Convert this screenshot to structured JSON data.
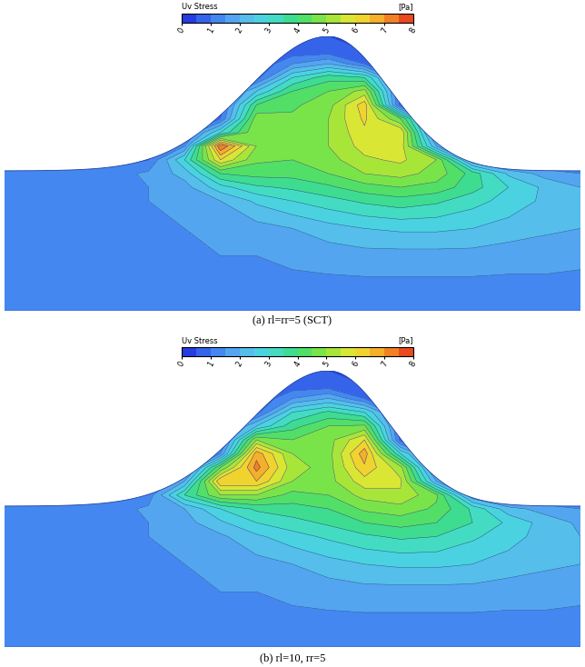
{
  "chart_data": [
    {
      "type": "contour",
      "caption": "(a) rl=rr=5 (SCT)",
      "colorbar_title": "Uv Stress",
      "colorbar_unit": "[Pa]",
      "colorbar_range": [
        0,
        8
      ],
      "colorbar_ticks": [
        0,
        1,
        2,
        3,
        4,
        5,
        6,
        7,
        8
      ],
      "tick_labels": false,
      "x": [
        0,
        0.0625,
        0.125,
        0.1875,
        0.25,
        0.3125,
        0.375,
        0.4375,
        0.5,
        0.5625,
        0.625,
        0.6875,
        0.75,
        0.8125,
        0.875,
        0.9375,
        1
      ],
      "y": [
        0,
        0.1,
        0.2,
        0.3,
        0.4,
        0.45,
        0.5,
        0.55,
        0.6,
        0.65,
        0.7,
        0.75,
        0.8,
        0.85,
        0.9,
        0.95,
        1
      ],
      "cells": [
        [
          1.0,
          1.0,
          1.0,
          1.0,
          1.0,
          1.0,
          1.0,
          1.0,
          1.0,
          1.0,
          1.0,
          1.0,
          1.0,
          1.0,
          1.0,
          1.0,
          1.0
        ],
        [
          1.4,
          1.4,
          1.4,
          1.4,
          1.4,
          1.4,
          1.4,
          1.4,
          1.4,
          1.4,
          1.4,
          1.4,
          1.4,
          1.4,
          1.4,
          1.4,
          1.4
        ],
        [
          1.5,
          1.5,
          1.5,
          1.5,
          1.5,
          1.5,
          1.5,
          1.5,
          1.6,
          1.7,
          1.8,
          1.8,
          1.8,
          1.8,
          1.7,
          1.7,
          1.6
        ],
        [
          1.5,
          1.5,
          1.5,
          1.5,
          1.5,
          1.5,
          1.6,
          1.8,
          2.0,
          2.3,
          2.5,
          2.6,
          2.6,
          2.5,
          2.3,
          2.1,
          2.0
        ],
        [
          1.5,
          1.5,
          1.5,
          1.5,
          1.5,
          1.6,
          2.0,
          2.6,
          3.0,
          3.3,
          3.6,
          3.8,
          3.6,
          3.2,
          2.8,
          2.4,
          2.1
        ],
        [
          1.5,
          1.5,
          1.5,
          1.5,
          1.5,
          1.8,
          2.8,
          3.4,
          3.6,
          3.9,
          4.3,
          4.5,
          4.3,
          3.7,
          3.0,
          2.4,
          2.0
        ],
        [
          1.3,
          1.3,
          1.3,
          1.3,
          1.6,
          2.2,
          4.0,
          4.2,
          4.2,
          4.5,
          5.0,
          5.2,
          4.8,
          3.8,
          2.4,
          1.8,
          1.5
        ],
        [
          0.8,
          0.8,
          0.8,
          0.8,
          1.0,
          3.0,
          6.0,
          4.6,
          4.5,
          4.8,
          5.4,
          5.6,
          5.0,
          1.5,
          0.8,
          0.8,
          0.8
        ],
        [
          0.8,
          0.8,
          0.8,
          0.8,
          0.8,
          1.5,
          7.5,
          5.0,
          4.6,
          5.0,
          5.7,
          5.8,
          2.0,
          0.8,
          0.8,
          0.8,
          0.8
        ],
        [
          0.8,
          0.8,
          0.8,
          0.8,
          0.8,
          0.8,
          3.0,
          5.0,
          4.7,
          5.0,
          5.9,
          6.0,
          0.8,
          0.8,
          0.8,
          0.8,
          0.8
        ],
        [
          0.8,
          0.8,
          0.8,
          0.8,
          0.8,
          0.8,
          1.0,
          4.8,
          4.6,
          5.0,
          6.1,
          4.5,
          0.8,
          0.8,
          0.8,
          0.8,
          0.8
        ],
        [
          0.8,
          0.8,
          0.8,
          0.8,
          0.8,
          0.8,
          0.8,
          4.0,
          4.4,
          4.8,
          6.3,
          0.8,
          0.8,
          0.8,
          0.8,
          0.8,
          0.8
        ],
        [
          0.8,
          0.8,
          0.8,
          0.8,
          0.8,
          0.8,
          0.8,
          2.5,
          4.0,
          4.5,
          5.2,
          0.8,
          0.8,
          0.8,
          0.8,
          0.8,
          0.8
        ],
        [
          0.8,
          0.8,
          0.8,
          0.8,
          0.8,
          0.8,
          0.8,
          0.8,
          3.0,
          3.8,
          3.5,
          0.8,
          0.8,
          0.8,
          0.8,
          0.8,
          0.8
        ],
        [
          0.5,
          0.5,
          0.5,
          0.5,
          0.5,
          0.5,
          0.5,
          0.5,
          1.5,
          2.0,
          1.0,
          0.5,
          0.5,
          0.5,
          0.5,
          0.5,
          0.5
        ],
        [
          0.5,
          0.5,
          0.5,
          0.5,
          0.5,
          0.5,
          0.5,
          0.5,
          0.6,
          0.6,
          0.5,
          0.5,
          0.5,
          0.5,
          0.5,
          0.5,
          0.5
        ],
        [
          0.5,
          0.5,
          0.5,
          0.5,
          0.5,
          0.5,
          0.5,
          0.5,
          0.5,
          0.5,
          0.5,
          0.5,
          0.5,
          0.5,
          0.5,
          0.5,
          0.5
        ]
      ]
    },
    {
      "type": "contour",
      "caption": "(b) rl=10, rr=5",
      "colorbar_title": "Uv Stress",
      "colorbar_unit": "[Pa]",
      "colorbar_range": [
        0,
        8
      ],
      "colorbar_ticks": [
        0,
        1,
        2,
        3,
        4,
        5,
        6,
        7,
        8
      ],
      "tick_labels": false,
      "x": [
        0,
        0.0625,
        0.125,
        0.1875,
        0.25,
        0.3125,
        0.375,
        0.4375,
        0.5,
        0.5625,
        0.625,
        0.6875,
        0.75,
        0.8125,
        0.875,
        0.9375,
        1
      ],
      "y": [
        0,
        0.1,
        0.2,
        0.3,
        0.4,
        0.45,
        0.5,
        0.55,
        0.6,
        0.65,
        0.7,
        0.75,
        0.8,
        0.85,
        0.9,
        0.95,
        1
      ],
      "cells": [
        [
          1.0,
          1.0,
          1.0,
          1.0,
          1.0,
          1.0,
          1.0,
          1.0,
          1.0,
          1.0,
          1.0,
          1.0,
          1.0,
          1.0,
          1.0,
          1.0,
          1.0
        ],
        [
          1.4,
          1.4,
          1.4,
          1.4,
          1.4,
          1.4,
          1.4,
          1.4,
          1.4,
          1.4,
          1.4,
          1.4,
          1.4,
          1.4,
          1.4,
          1.4,
          1.4
        ],
        [
          1.5,
          1.5,
          1.5,
          1.5,
          1.5,
          1.5,
          1.5,
          1.5,
          1.6,
          1.7,
          1.8,
          1.8,
          1.8,
          1.8,
          1.7,
          1.7,
          1.6
        ],
        [
          1.5,
          1.5,
          1.5,
          1.5,
          1.5,
          1.5,
          1.6,
          1.8,
          2.0,
          2.3,
          2.5,
          2.6,
          2.6,
          2.5,
          2.3,
          2.1,
          2.0
        ],
        [
          1.5,
          1.5,
          1.5,
          1.5,
          1.5,
          1.6,
          1.9,
          2.4,
          2.8,
          3.1,
          3.4,
          3.6,
          3.5,
          3.1,
          2.7,
          2.3,
          2.0
        ],
        [
          1.5,
          1.5,
          1.5,
          1.5,
          1.5,
          1.8,
          2.4,
          3.0,
          3.3,
          3.6,
          4.0,
          4.2,
          4.0,
          3.5,
          2.9,
          2.3,
          1.9
        ],
        [
          1.3,
          1.3,
          1.3,
          1.3,
          1.6,
          2.0,
          3.0,
          3.6,
          3.8,
          4.0,
          4.6,
          4.8,
          4.4,
          3.4,
          2.2,
          1.8,
          1.5
        ],
        [
          0.8,
          0.8,
          0.8,
          0.8,
          1.2,
          3.5,
          5.0,
          5.0,
          4.3,
          4.5,
          5.2,
          5.4,
          4.6,
          1.5,
          0.8,
          0.8,
          0.8
        ],
        [
          0.8,
          0.8,
          0.8,
          0.8,
          0.8,
          2.0,
          6.5,
          6.5,
          5.0,
          4.8,
          5.8,
          5.6,
          2.0,
          0.8,
          0.8,
          0.8,
          0.8
        ],
        [
          0.8,
          0.8,
          0.8,
          0.8,
          0.8,
          0.8,
          4.5,
          7.2,
          5.2,
          4.8,
          6.4,
          5.2,
          0.8,
          0.8,
          0.8,
          0.8,
          0.8
        ],
        [
          0.8,
          0.8,
          0.8,
          0.8,
          0.8,
          0.8,
          1.5,
          6.8,
          5.0,
          4.8,
          6.8,
          3.0,
          0.8,
          0.8,
          0.8,
          0.8,
          0.8
        ],
        [
          0.8,
          0.8,
          0.8,
          0.8,
          0.8,
          0.8,
          0.8,
          5.0,
          4.5,
          4.8,
          6.0,
          0.8,
          0.8,
          0.8,
          0.8,
          0.8,
          0.8
        ],
        [
          0.8,
          0.8,
          0.8,
          0.8,
          0.8,
          0.8,
          0.8,
          2.5,
          3.8,
          4.5,
          4.6,
          0.8,
          0.8,
          0.8,
          0.8,
          0.8,
          0.8
        ],
        [
          0.8,
          0.8,
          0.8,
          0.8,
          0.8,
          0.8,
          0.8,
          0.8,
          3.0,
          3.6,
          3.0,
          0.8,
          0.8,
          0.8,
          0.8,
          0.8,
          0.8
        ],
        [
          0.5,
          0.5,
          0.5,
          0.5,
          0.5,
          0.5,
          0.5,
          0.5,
          1.5,
          2.0,
          1.0,
          0.5,
          0.5,
          0.5,
          0.5,
          0.5,
          0.5
        ],
        [
          0.5,
          0.5,
          0.5,
          0.5,
          0.5,
          0.5,
          0.5,
          0.5,
          0.6,
          0.6,
          0.5,
          0.5,
          0.5,
          0.5,
          0.5,
          0.5,
          0.5
        ],
        [
          0.5,
          0.5,
          0.5,
          0.5,
          0.5,
          0.5,
          0.5,
          0.5,
          0.5,
          0.5,
          0.5,
          0.5,
          0.5,
          0.5,
          0.5,
          0.5,
          0.5
        ]
      ]
    }
  ]
}
